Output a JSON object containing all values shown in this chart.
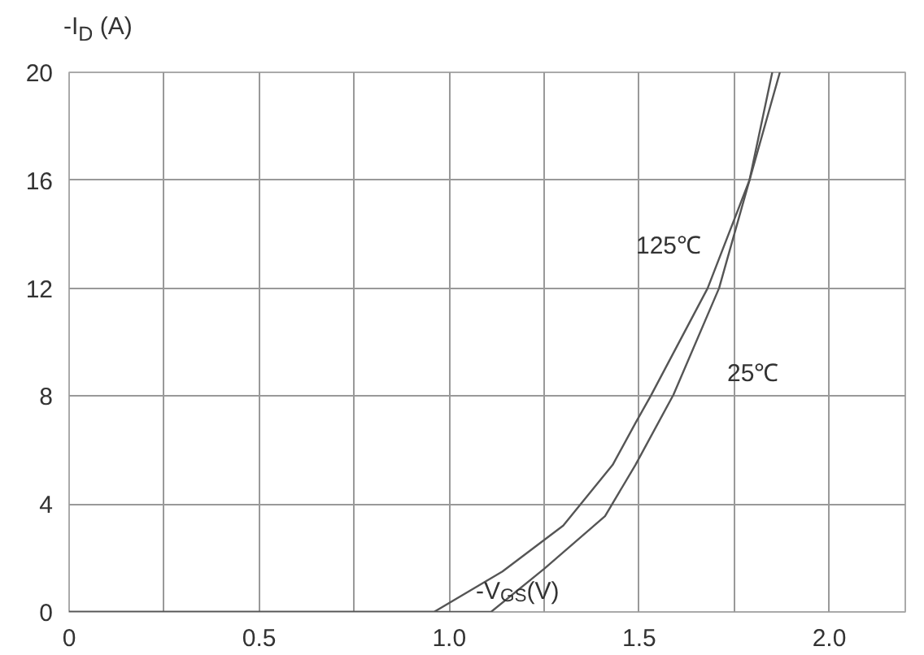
{
  "chart_data": {
    "type": "line",
    "xlabel": "-V$_{GS}$(V)",
    "ylabel": "-I$_{D}$ (A)",
    "series": [
      {
        "name": "125℃",
        "color": "#555555",
        "x": [
          0,
          0.96,
          1.14,
          1.3,
          1.43,
          1.49,
          1.53,
          1.68,
          1.79,
          1.87
        ],
        "values": [
          0,
          0,
          1.5,
          3.2,
          5.45,
          7.0,
          8.0,
          12,
          16,
          20
        ]
      },
      {
        "name": "25℃",
        "color": "#555555",
        "x": [
          0,
          1.11,
          1.25,
          1.41,
          1.49,
          1.59,
          1.71,
          1.79,
          1.85
        ],
        "values": [
          0,
          0,
          1.6,
          3.55,
          5.45,
          8.05,
          12,
          16,
          20
        ]
      }
    ],
    "xlim": [
      0,
      2.2
    ],
    "ylim": [
      0,
      20
    ],
    "xticks": [
      0,
      {
        "value": 0.25,
        "label": null
      },
      0.5,
      {
        "value": 0.75,
        "label": null
      },
      {
        "value": 1.0,
        "label": "1.0"
      },
      {
        "value": 1.25,
        "label": null
      },
      1.5,
      {
        "value": 1.75,
        "label": null
      },
      {
        "value": 2.0,
        "label": "2.0"
      }
    ],
    "yticks": [
      0,
      4,
      8,
      12,
      16,
      20
    ],
    "grid": true,
    "marker": "none",
    "line_style": "solid",
    "legend": false
  }
}
